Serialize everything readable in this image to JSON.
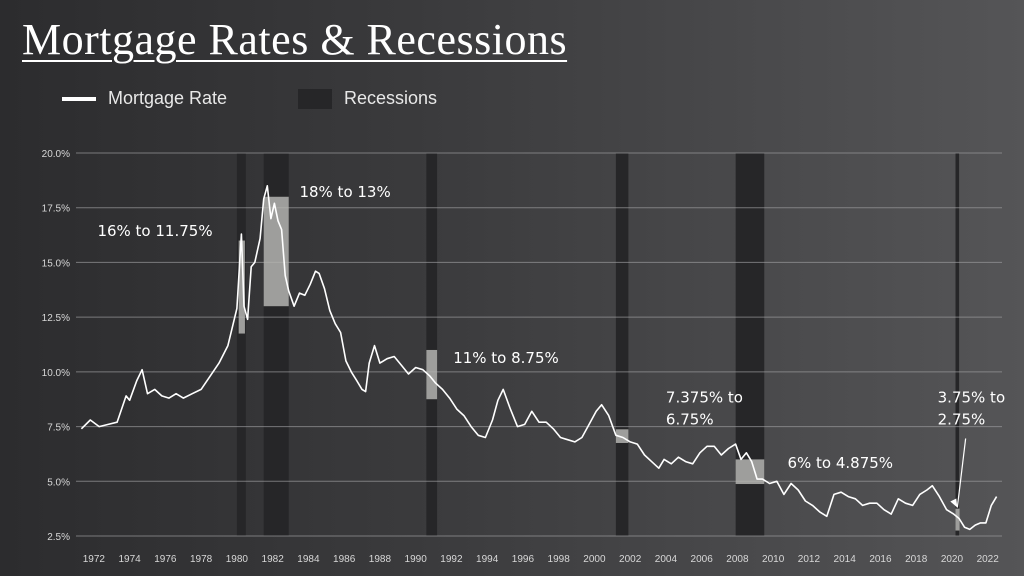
{
  "title": "Mortgage Rates & Recessions",
  "legend": {
    "line_label": "Mortgage Rate",
    "box_label": "Recessions"
  },
  "colors": {
    "line": "#ffffff",
    "recession": "#262628",
    "highlight": "#b4b4b0",
    "grid": "#9a9a9c"
  },
  "chart_data": {
    "type": "line",
    "title": "Mortgage Rates & Recessions",
    "xlabel": "",
    "ylabel": "",
    "xlim": [
      1971.0,
      2022.8
    ],
    "ylim": [
      2.5,
      20.0
    ],
    "yticks": [
      2.5,
      5.0,
      7.5,
      10.0,
      12.5,
      15.0,
      17.5,
      20.0
    ],
    "ytick_labels": [
      "2.5%",
      "5.0%",
      "7.5%",
      "10.0%",
      "12.5%",
      "15.0%",
      "17.5%",
      "20.0%"
    ],
    "xtick_labels": [
      "1972",
      "1974",
      "1976",
      "1978",
      "1980",
      "1982",
      "1984",
      "1986",
      "1988",
      "1990",
      "1992",
      "1994",
      "1996",
      "1998",
      "2000",
      "2002",
      "2004",
      "2006",
      "2008",
      "2010",
      "2012",
      "2014",
      "2016",
      "2018",
      "2020",
      "2022"
    ],
    "series": [
      {
        "name": "Mortgage Rate",
        "x": [
          1971.3,
          1971.8,
          1972.3,
          1972.8,
          1973.3,
          1973.8,
          1974.0,
          1974.4,
          1974.7,
          1975.0,
          1975.4,
          1975.8,
          1976.2,
          1976.6,
          1977.0,
          1977.5,
          1978.0,
          1978.5,
          1979.0,
          1979.5,
          1980.0,
          1980.25,
          1980.4,
          1980.6,
          1980.8,
          1981.0,
          1981.3,
          1981.5,
          1981.7,
          1981.9,
          1982.1,
          1982.3,
          1982.5,
          1982.7,
          1982.9,
          1983.2,
          1983.5,
          1983.8,
          1984.1,
          1984.4,
          1984.6,
          1984.9,
          1985.2,
          1985.5,
          1985.8,
          1986.1,
          1986.4,
          1986.7,
          1987.0,
          1987.2,
          1987.4,
          1987.7,
          1988.0,
          1988.4,
          1988.8,
          1989.2,
          1989.6,
          1990.0,
          1990.4,
          1990.8,
          1991.1,
          1991.5,
          1991.9,
          1992.3,
          1992.7,
          1993.1,
          1993.5,
          1993.9,
          1994.3,
          1994.6,
          1994.9,
          1995.3,
          1995.7,
          1996.1,
          1996.5,
          1996.9,
          1997.3,
          1997.7,
          1998.1,
          1998.5,
          1998.9,
          1999.3,
          1999.7,
          2000.1,
          2000.4,
          2000.8,
          2001.2,
          2001.6,
          2002.0,
          2002.4,
          2002.8,
          2003.2,
          2003.6,
          2003.9,
          2004.3,
          2004.7,
          2005.1,
          2005.5,
          2005.9,
          2006.3,
          2006.7,
          2007.1,
          2007.5,
          2007.9,
          2008.2,
          2008.5,
          2008.8,
          2009.1,
          2009.4,
          2009.8,
          2010.2,
          2010.6,
          2011.0,
          2011.4,
          2011.8,
          2012.2,
          2012.6,
          2013.0,
          2013.4,
          2013.8,
          2014.2,
          2014.6,
          2015.0,
          2015.4,
          2015.8,
          2016.2,
          2016.6,
          2017.0,
          2017.4,
          2017.8,
          2018.2,
          2018.6,
          2018.9,
          2019.3,
          2019.7,
          2020.1,
          2020.4,
          2020.7,
          2021.0,
          2021.3,
          2021.6,
          2021.9,
          2022.2,
          2022.5
        ],
        "values": [
          7.4,
          7.8,
          7.5,
          7.6,
          7.7,
          8.9,
          8.7,
          9.6,
          10.1,
          9.0,
          9.2,
          8.9,
          8.8,
          9.0,
          8.8,
          9.0,
          9.2,
          9.8,
          10.4,
          11.2,
          12.9,
          16.3,
          13.0,
          12.4,
          14.8,
          15.0,
          16.1,
          17.9,
          18.5,
          17.0,
          17.7,
          16.9,
          16.5,
          14.4,
          13.7,
          13.0,
          13.6,
          13.5,
          14.0,
          14.6,
          14.5,
          13.8,
          12.8,
          12.2,
          11.8,
          10.5,
          10.0,
          9.6,
          9.2,
          9.1,
          10.4,
          11.2,
          10.4,
          10.6,
          10.7,
          10.3,
          9.9,
          10.2,
          10.1,
          9.8,
          9.5,
          9.2,
          8.8,
          8.3,
          8.0,
          7.5,
          7.1,
          7.0,
          7.8,
          8.7,
          9.2,
          8.3,
          7.5,
          7.6,
          8.2,
          7.7,
          7.7,
          7.4,
          7.0,
          6.9,
          6.8,
          7.0,
          7.6,
          8.2,
          8.5,
          8.0,
          7.1,
          7.0,
          6.8,
          6.7,
          6.2,
          5.9,
          5.6,
          6.0,
          5.8,
          6.1,
          5.9,
          5.8,
          6.3,
          6.6,
          6.6,
          6.2,
          6.5,
          6.7,
          6.0,
          6.3,
          5.9,
          5.1,
          5.1,
          4.9,
          5.0,
          4.4,
          4.9,
          4.6,
          4.1,
          3.9,
          3.6,
          3.4,
          4.4,
          4.5,
          4.3,
          4.2,
          3.9,
          4.0,
          4.0,
          3.7,
          3.5,
          4.2,
          4.0,
          3.9,
          4.4,
          4.6,
          4.8,
          4.3,
          3.7,
          3.5,
          3.3,
          2.9,
          2.8,
          3.0,
          3.1,
          3.1,
          3.9,
          4.3
        ]
      }
    ],
    "recessions": [
      [
        1980.0,
        1980.5
      ],
      [
        1981.5,
        1982.9
      ],
      [
        1990.6,
        1991.2
      ],
      [
        2001.2,
        2001.9
      ],
      [
        2007.9,
        2009.5
      ],
      [
        2020.2,
        2020.4
      ]
    ],
    "highlights": [
      {
        "x0": 1980.1,
        "x1": 1980.45,
        "y0": 11.75,
        "y1": 16.0
      },
      {
        "x0": 1981.5,
        "x1": 1982.9,
        "y0": 13.0,
        "y1": 18.0
      },
      {
        "x0": 1990.6,
        "x1": 1991.2,
        "y0": 8.75,
        "y1": 11.0
      },
      {
        "x0": 2001.2,
        "x1": 2001.9,
        "y0": 6.75,
        "y1": 7.375
      },
      {
        "x0": 2007.9,
        "x1": 2009.5,
        "y0": 4.875,
        "y1": 6.0
      },
      {
        "x0": 2020.2,
        "x1": 2020.4,
        "y0": 2.75,
        "y1": 3.75
      }
    ],
    "annotations": [
      {
        "lines": [
          "16% to 11.75%"
        ],
        "x": 1972.2,
        "y": 16.2
      },
      {
        "lines": [
          "18% to 13%"
        ],
        "x": 1983.5,
        "y": 18.0
      },
      {
        "lines": [
          "11% to 8.75%"
        ],
        "x": 1992.1,
        "y": 10.4
      },
      {
        "lines": [
          "7.375% to",
          "6.75%"
        ],
        "x": 2004.0,
        "y": 8.6
      },
      {
        "lines": [
          "6% to 4.875%"
        ],
        "x": 2010.8,
        "y": 5.6
      },
      {
        "lines": [
          "3.75% to",
          "2.75%"
        ],
        "x": 2019.2,
        "y": 8.6
      }
    ]
  }
}
